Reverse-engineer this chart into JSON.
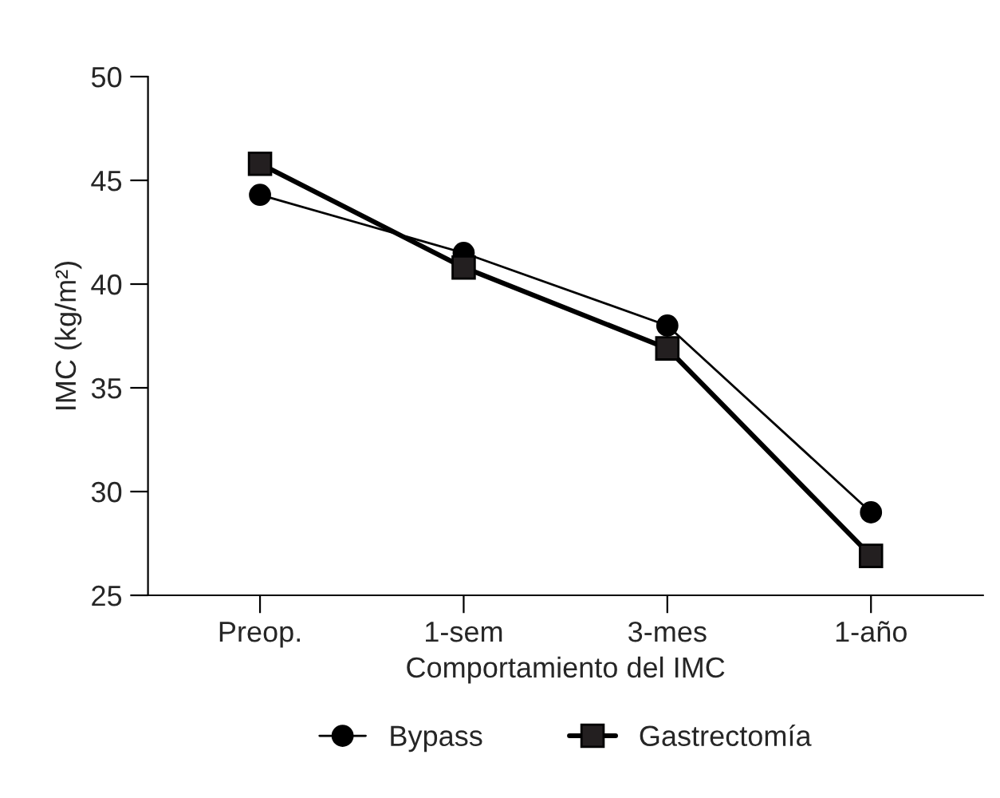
{
  "chart_data": {
    "type": "line",
    "xlabel": "Comportamiento del IMC",
    "ylabel": "IMC (kg/m²)",
    "categories": [
      "Preop.",
      "1-sem",
      "3-mes",
      "1-año"
    ],
    "series": [
      {
        "name": "Bypass",
        "color": "#000000",
        "marker": "circle",
        "values": [
          44.3,
          41.5,
          38.0,
          29.0
        ]
      },
      {
        "name": "Gastrectomía",
        "color": "#231f20",
        "marker": "square",
        "values": [
          45.8,
          40.8,
          36.9,
          26.9
        ]
      }
    ],
    "ylim": [
      25,
      50
    ],
    "yticks": [
      25,
      30,
      35,
      40,
      45,
      50
    ],
    "grid": false,
    "legend": "bottom",
    "line_style": "solid"
  }
}
